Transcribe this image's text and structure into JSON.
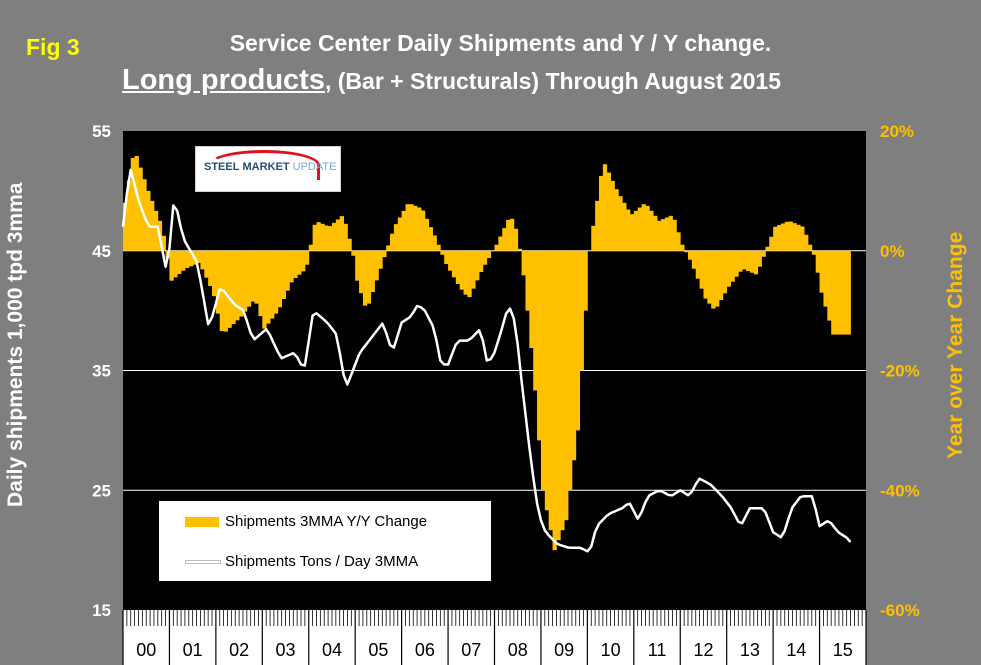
{
  "figure_label": "Fig 3",
  "title_line1": "Service Center Daily Shipments and Y / Y change.",
  "title_line2_emph": "Long products",
  "title_line2_rest": ", (Bar + Structurals) Through August 2015",
  "logo": {
    "word1": "STEEL",
    "word2": "MARKET",
    "word3": "UPDATE"
  },
  "colors": {
    "bars": "#ffc000",
    "line": "#ffffff",
    "plot_bg": "#000000",
    "page_bg": "#7f7f7f",
    "right_axis": "#ffc000"
  },
  "chart_data": {
    "type": "bar+line",
    "title": "Service Center Daily Shipments and Y / Y change. Long products, (Bar + Structurals) Through August 2015",
    "ylabel": "Daily shipments 1,000 tpd 3mma",
    "y2label": "Year over Year Change",
    "ylim": [
      15,
      55
    ],
    "y2lim": [
      -60,
      20
    ],
    "yticks": [
      "55",
      "45",
      "35",
      "25",
      "15"
    ],
    "y2ticks": [
      "20%",
      "0%",
      "-20%",
      "-40%",
      "-60%"
    ],
    "categories": [
      "00",
      "01",
      "02",
      "03",
      "04",
      "05",
      "06",
      "07",
      "08",
      "09",
      "10",
      "11",
      "12",
      "13",
      "14",
      "15"
    ],
    "grid": true,
    "legend_position": "bottom-left",
    "series": [
      {
        "name": "Shipments 3MMA Y/Y Change",
        "axis": "right",
        "kind": "bar",
        "anchors": [
          [
            0.0,
            8
          ],
          [
            0.2,
            17
          ],
          [
            0.5,
            10
          ],
          [
            0.8,
            4
          ],
          [
            1.0,
            -5
          ],
          [
            1.3,
            -3
          ],
          [
            1.6,
            -2
          ],
          [
            1.9,
            -7
          ],
          [
            2.1,
            -14
          ],
          [
            2.5,
            -11
          ],
          [
            2.8,
            -8
          ],
          [
            3.0,
            -13
          ],
          [
            3.3,
            -10
          ],
          [
            3.6,
            -5
          ],
          [
            3.9,
            -3
          ],
          [
            4.1,
            5
          ],
          [
            4.4,
            4
          ],
          [
            4.7,
            6
          ],
          [
            4.9,
            0
          ],
          [
            5.0,
            -5
          ],
          [
            5.2,
            -10
          ],
          [
            5.5,
            -3
          ],
          [
            5.8,
            4
          ],
          [
            6.1,
            8
          ],
          [
            6.4,
            7
          ],
          [
            6.7,
            2
          ],
          [
            6.9,
            -2
          ],
          [
            7.2,
            -6
          ],
          [
            7.4,
            -8
          ],
          [
            7.7,
            -3
          ],
          [
            8.0,
            1
          ],
          [
            8.3,
            6
          ],
          [
            8.45,
            3
          ],
          [
            8.6,
            -5
          ],
          [
            8.8,
            -20
          ],
          [
            9.0,
            -40
          ],
          [
            9.25,
            -50
          ],
          [
            9.5,
            -45
          ],
          [
            9.75,
            -30
          ],
          [
            10.0,
            0
          ],
          [
            10.3,
            15
          ],
          [
            10.6,
            10
          ],
          [
            10.9,
            6
          ],
          [
            11.2,
            8
          ],
          [
            11.5,
            5
          ],
          [
            11.8,
            6
          ],
          [
            12.0,
            1
          ],
          [
            12.2,
            -2
          ],
          [
            12.5,
            -8
          ],
          [
            12.7,
            -10
          ],
          [
            13.0,
            -6
          ],
          [
            13.3,
            -3
          ],
          [
            13.6,
            -4
          ],
          [
            13.8,
            0
          ],
          [
            14.0,
            4
          ],
          [
            14.3,
            5
          ],
          [
            14.6,
            4
          ],
          [
            14.85,
            -1
          ],
          [
            15.0,
            -7
          ],
          [
            15.25,
            -14
          ],
          [
            15.35,
            -14
          ]
        ]
      },
      {
        "name": "Shipments Tons / Day 3MMA",
        "axis": "left",
        "kind": "line",
        "anchors": [
          [
            0.0,
            47
          ],
          [
            0.15,
            52
          ],
          [
            0.35,
            49
          ],
          [
            0.55,
            47
          ],
          [
            0.75,
            47
          ],
          [
            0.95,
            43
          ],
          [
            1.1,
            49.5
          ],
          [
            1.3,
            46
          ],
          [
            1.6,
            44
          ],
          [
            1.85,
            38.5
          ],
          [
            2.1,
            42
          ],
          [
            2.4,
            40.5
          ],
          [
            2.6,
            40
          ],
          [
            2.8,
            37.5
          ],
          [
            3.1,
            38.5
          ],
          [
            3.4,
            36
          ],
          [
            3.7,
            36.5
          ],
          [
            3.9,
            35
          ],
          [
            4.1,
            40
          ],
          [
            4.4,
            39
          ],
          [
            4.6,
            38
          ],
          [
            4.8,
            33.5
          ],
          [
            5.1,
            36.5
          ],
          [
            5.3,
            37.5
          ],
          [
            5.6,
            39
          ],
          [
            5.8,
            36.5
          ],
          [
            6.0,
            39
          ],
          [
            6.2,
            39.5
          ],
          [
            6.35,
            40.5
          ],
          [
            6.5,
            40
          ],
          [
            6.7,
            38.5
          ],
          [
            6.85,
            35.5
          ],
          [
            7.0,
            35.5
          ],
          [
            7.2,
            37.5
          ],
          [
            7.45,
            37.5
          ],
          [
            7.7,
            38.5
          ],
          [
            7.85,
            35.5
          ],
          [
            8.0,
            36.5
          ],
          [
            8.2,
            39
          ],
          [
            8.3,
            40.5
          ],
          [
            8.45,
            39
          ],
          [
            8.6,
            33.5
          ],
          [
            8.8,
            27
          ],
          [
            8.95,
            23
          ],
          [
            9.1,
            21.5
          ],
          [
            9.35,
            20.5
          ],
          [
            9.6,
            20.2
          ],
          [
            9.85,
            20.2
          ],
          [
            10.05,
            19.8
          ],
          [
            10.2,
            22
          ],
          [
            10.45,
            23
          ],
          [
            10.75,
            23.5
          ],
          [
            10.9,
            24
          ],
          [
            11.1,
            22.5
          ],
          [
            11.3,
            24.5
          ],
          [
            11.55,
            25
          ],
          [
            11.8,
            24.5
          ],
          [
            12.0,
            25
          ],
          [
            12.2,
            24.5
          ],
          [
            12.4,
            26
          ],
          [
            12.65,
            25.5
          ],
          [
            12.9,
            24.5
          ],
          [
            13.1,
            23.5
          ],
          [
            13.3,
            22
          ],
          [
            13.5,
            23.5
          ],
          [
            13.8,
            23.5
          ],
          [
            14.0,
            21.5
          ],
          [
            14.2,
            21
          ],
          [
            14.4,
            23.5
          ],
          [
            14.6,
            24.5
          ],
          [
            14.85,
            24.5
          ],
          [
            15.0,
            22
          ],
          [
            15.2,
            22.5
          ],
          [
            15.4,
            21.5
          ],
          [
            15.6,
            21
          ],
          [
            15.7,
            20.5
          ]
        ]
      }
    ]
  }
}
